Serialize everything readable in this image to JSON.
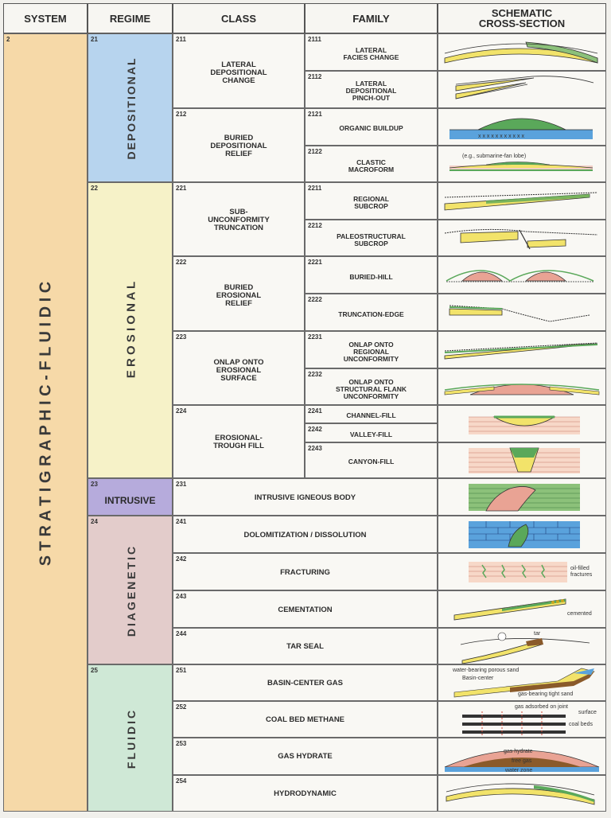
{
  "headers": {
    "system": "SYSTEM",
    "regime": "REGIME",
    "class": "CLASS",
    "family": "FAMILY",
    "schematic": "SCHEMATIC\nCROSS-SECTION"
  },
  "system": {
    "code": "2",
    "name": "S T R A T I G R A P H I C   -   F L U I D I C",
    "color": "#f6d9a8"
  },
  "regimes": [
    {
      "code": "21",
      "name": "DEPOSITIONAL",
      "color": "#b7d4ee"
    },
    {
      "code": "22",
      "name": "E R O S I O N A L",
      "color": "#f6f2c8"
    },
    {
      "code": "23",
      "name": "INTRUSIVE",
      "color": "#b6abdc"
    },
    {
      "code": "24",
      "name": "DIAGENETIC",
      "color": "#e3cccb"
    },
    {
      "code": "25",
      "name": "FLUIDIC",
      "color": "#cfe8d6"
    }
  ],
  "classes": [
    {
      "code": "211",
      "name": "LATERAL\nDEPOSITIONAL\nCHANGE"
    },
    {
      "code": "212",
      "name": "BURIED\nDEPOSITIONAL\nRELIEF"
    },
    {
      "code": "221",
      "name": "SUB-\nUNCONFORMITY\nTRUNCATION"
    },
    {
      "code": "222",
      "name": "BURIED\nEROSIONAL\nRELIEF"
    },
    {
      "code": "223",
      "name": "ONLAP ONTO\nEROSIONAL\nSURFACE"
    },
    {
      "code": "224",
      "name": "EROSIONAL-\nTROUGH FILL"
    },
    {
      "code": "231",
      "name": "INTRUSIVE IGNEOUS BODY"
    },
    {
      "code": "241",
      "name": "DOLOMITIZATION / DISSOLUTION"
    },
    {
      "code": "242",
      "name": "FRACTURING"
    },
    {
      "code": "243",
      "name": "CEMENTATION"
    },
    {
      "code": "244",
      "name": "TAR SEAL"
    },
    {
      "code": "251",
      "name": "BASIN-CENTER GAS"
    },
    {
      "code": "252",
      "name": "COAL BED METHANE"
    },
    {
      "code": "253",
      "name": "GAS HYDRATE"
    },
    {
      "code": "254",
      "name": "HYDRODYNAMIC"
    }
  ],
  "families": [
    {
      "code": "2111",
      "name": "LATERAL\nFACIES CHANGE"
    },
    {
      "code": "2112",
      "name": "LATERAL\nDEPOSITIONAL\nPINCH-OUT"
    },
    {
      "code": "2121",
      "name": "ORGANIC BUILDUP"
    },
    {
      "code": "2122",
      "name": "CLASTIC\nMACROFORM"
    },
    {
      "code": "2211",
      "name": "REGIONAL\nSUBCROP"
    },
    {
      "code": "2212",
      "name": "PALEOSTRUCTURAL\nSUBCROP"
    },
    {
      "code": "2221",
      "name": "BURIED-HILL"
    },
    {
      "code": "2222",
      "name": "TRUNCATION-EDGE"
    },
    {
      "code": "2231",
      "name": "ONLAP ONTO\nREGIONAL\nUNCONFORMITY"
    },
    {
      "code": "2232",
      "name": "ONLAP ONTO\nSTRUCTURAL FLANK\nUNCONFORMITY"
    },
    {
      "code": "2241",
      "name": "CHANNEL-FILL"
    },
    {
      "code": "2242",
      "name": "VALLEY-FILL"
    },
    {
      "code": "2243",
      "name": "CANYON-FILL"
    }
  ],
  "schematic_notes": {
    "clastic": "(e.g., submarine-fan lobe)",
    "fracturing": "oil-filled\nfractures",
    "cementation": "cemented",
    "tar": "tar",
    "bcg_water": "water-bearing porous sand",
    "bcg_center": "Basin-center",
    "bcg_gas": "gas-bearing tight sand",
    "cbm_adsorbed": "gas adsorbed on joint\nsurface",
    "cbm_coal": "coal beds",
    "hyd_hydrate": "gas hydrate",
    "hyd_free": "free gas",
    "hyd_water": "water zone"
  },
  "colors": {
    "reservoir_yellow": "#f2e36a",
    "seal_green": "#5aa85a",
    "basement_pink": "#e9a394",
    "water_blue": "#5aa2dc",
    "coal_black": "#333333",
    "tar_brown": "#8a5a2a"
  }
}
